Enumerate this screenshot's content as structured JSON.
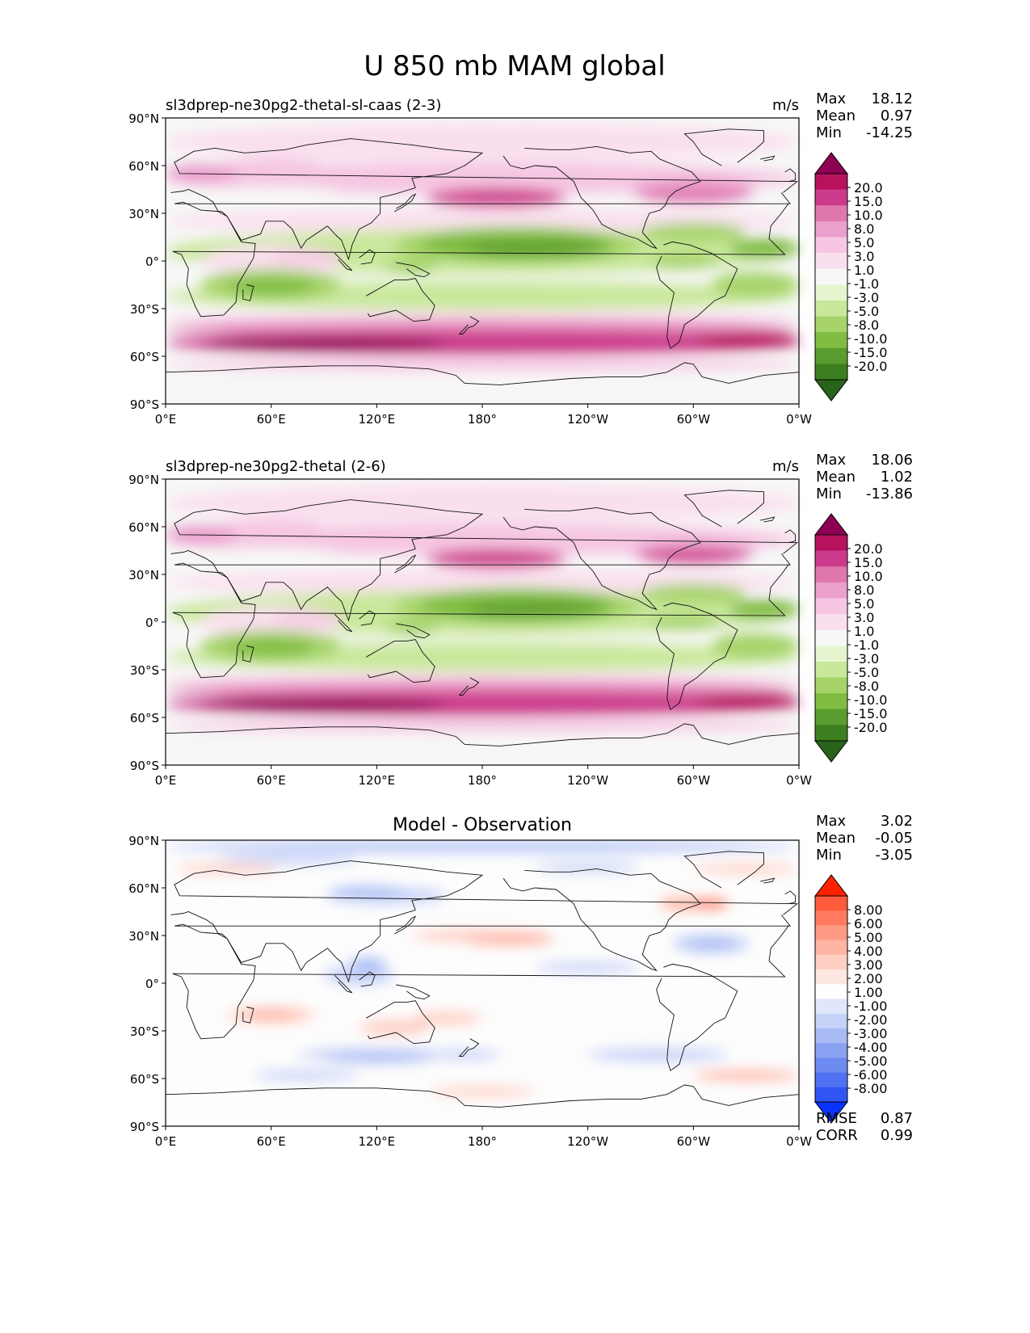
{
  "figure": {
    "title": "U 850 mb MAM global"
  },
  "panels": [
    {
      "id": "test",
      "title_left": "sl3dprep-ne30pg2-thetal-sl-caas (2-3)",
      "title_center": "",
      "units": "m/s",
      "stats": [
        {
          "label": "Max",
          "value": "18.12"
        },
        {
          "label": "Mean",
          "value": "0.97"
        },
        {
          "label": "Min",
          "value": "-14.25"
        }
      ],
      "colorbar_levels": [
        "20.0",
        "15.0",
        "10.0",
        "8.0",
        "5.0",
        "3.0",
        "1.0",
        "-1.0",
        "-3.0",
        "-5.0",
        "-8.0",
        "-10.0",
        "-15.0",
        "-20.0"
      ],
      "footer_stats": []
    },
    {
      "id": "reference",
      "title_left": "sl3dprep-ne30pg2-thetal (2-6)",
      "title_center": "",
      "units": "m/s",
      "stats": [
        {
          "label": "Max",
          "value": "18.06"
        },
        {
          "label": "Mean",
          "value": "1.02"
        },
        {
          "label": "Min",
          "value": "-13.86"
        }
      ],
      "colorbar_levels": [
        "20.0",
        "15.0",
        "10.0",
        "8.0",
        "5.0",
        "3.0",
        "1.0",
        "-1.0",
        "-3.0",
        "-5.0",
        "-8.0",
        "-10.0",
        "-15.0",
        "-20.0"
      ],
      "footer_stats": []
    },
    {
      "id": "difference",
      "title_left": "",
      "title_center": "Model - Observation",
      "units": "",
      "stats": [
        {
          "label": "Max",
          "value": "3.02"
        },
        {
          "label": "Mean",
          "value": "-0.05"
        },
        {
          "label": "Min",
          "value": "-3.05"
        }
      ],
      "colorbar_levels": [
        "8.00",
        "6.00",
        "5.00",
        "4.00",
        "3.00",
        "2.00",
        "1.00",
        "-1.00",
        "-2.00",
        "-3.00",
        "-4.00",
        "-5.00",
        "-6.00",
        "-8.00"
      ],
      "footer_stats": [
        {
          "label": "RMSE",
          "value": "0.87"
        },
        {
          "label": "CORR",
          "value": "0.99"
        }
      ]
    }
  ],
  "axes": {
    "y_ticks": [
      "90°N",
      "60°N",
      "30°N",
      "0°",
      "30°S",
      "60°S",
      "90°S"
    ],
    "x_ticks": [
      "0°E",
      "60°E",
      "120°E",
      "180°",
      "120°W",
      "60°W",
      "0°W"
    ]
  },
  "colors": {
    "piyg": [
      "#8e0152",
      "#b8125f",
      "#cc3a8c",
      "#de77ae",
      "#ea9fcd",
      "#f6c6e2",
      "#fae0ef",
      "#f7f7f7",
      "#e6f5d0",
      "#c9e89b",
      "#a6d46a",
      "#7fbc41",
      "#5a9c2f",
      "#3d7f1f",
      "#276419"
    ],
    "bwr": [
      "#ff2200",
      "#ff5a3c",
      "#ff7a60",
      "#ff9a84",
      "#ffb4a4",
      "#ffcfc4",
      "#ffe7e1",
      "#fdfdfd",
      "#e1e7fb",
      "#c6d1f8",
      "#a9bbf5",
      "#8aa2f1",
      "#6d8af0",
      "#4f71f2",
      "#2f55f5",
      "#0a32ff"
    ]
  }
}
